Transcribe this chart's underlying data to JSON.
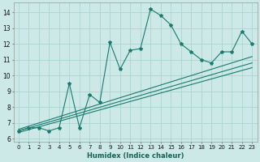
{
  "xlabel": "Humidex (Indice chaleur)",
  "bg_color": "#cce9e7",
  "grid_color": "#aad4d1",
  "line_color": "#1a7a6e",
  "xlim": [
    -0.5,
    23.5
  ],
  "ylim": [
    5.8,
    14.6
  ],
  "yticks": [
    6,
    7,
    8,
    9,
    10,
    11,
    12,
    13,
    14
  ],
  "xticks": [
    0,
    1,
    2,
    3,
    4,
    5,
    6,
    7,
    8,
    9,
    10,
    11,
    12,
    13,
    14,
    15,
    16,
    17,
    18,
    19,
    20,
    21,
    22,
    23
  ],
  "main_x": [
    0,
    1,
    2,
    3,
    4,
    5,
    6,
    7,
    8,
    9,
    10,
    11,
    12,
    13,
    14,
    15,
    16,
    17,
    18,
    19,
    20,
    21,
    22,
    23
  ],
  "main_y": [
    6.5,
    6.7,
    6.7,
    6.5,
    6.7,
    9.5,
    6.7,
    8.8,
    8.3,
    12.1,
    10.4,
    11.6,
    11.7,
    14.2,
    13.8,
    13.2,
    12.0,
    11.5,
    11.0,
    10.8,
    11.5,
    11.5,
    12.8,
    12.0
  ],
  "reg_lines": [
    {
      "x": [
        0,
        23
      ],
      "y": [
        6.4,
        10.5
      ]
    },
    {
      "x": [
        0,
        23
      ],
      "y": [
        6.5,
        10.8
      ]
    },
    {
      "x": [
        0,
        23
      ],
      "y": [
        6.6,
        11.2
      ]
    }
  ],
  "tick_fontsize": 5,
  "xlabel_fontsize": 6,
  "lw": 0.8,
  "marker_size": 3
}
